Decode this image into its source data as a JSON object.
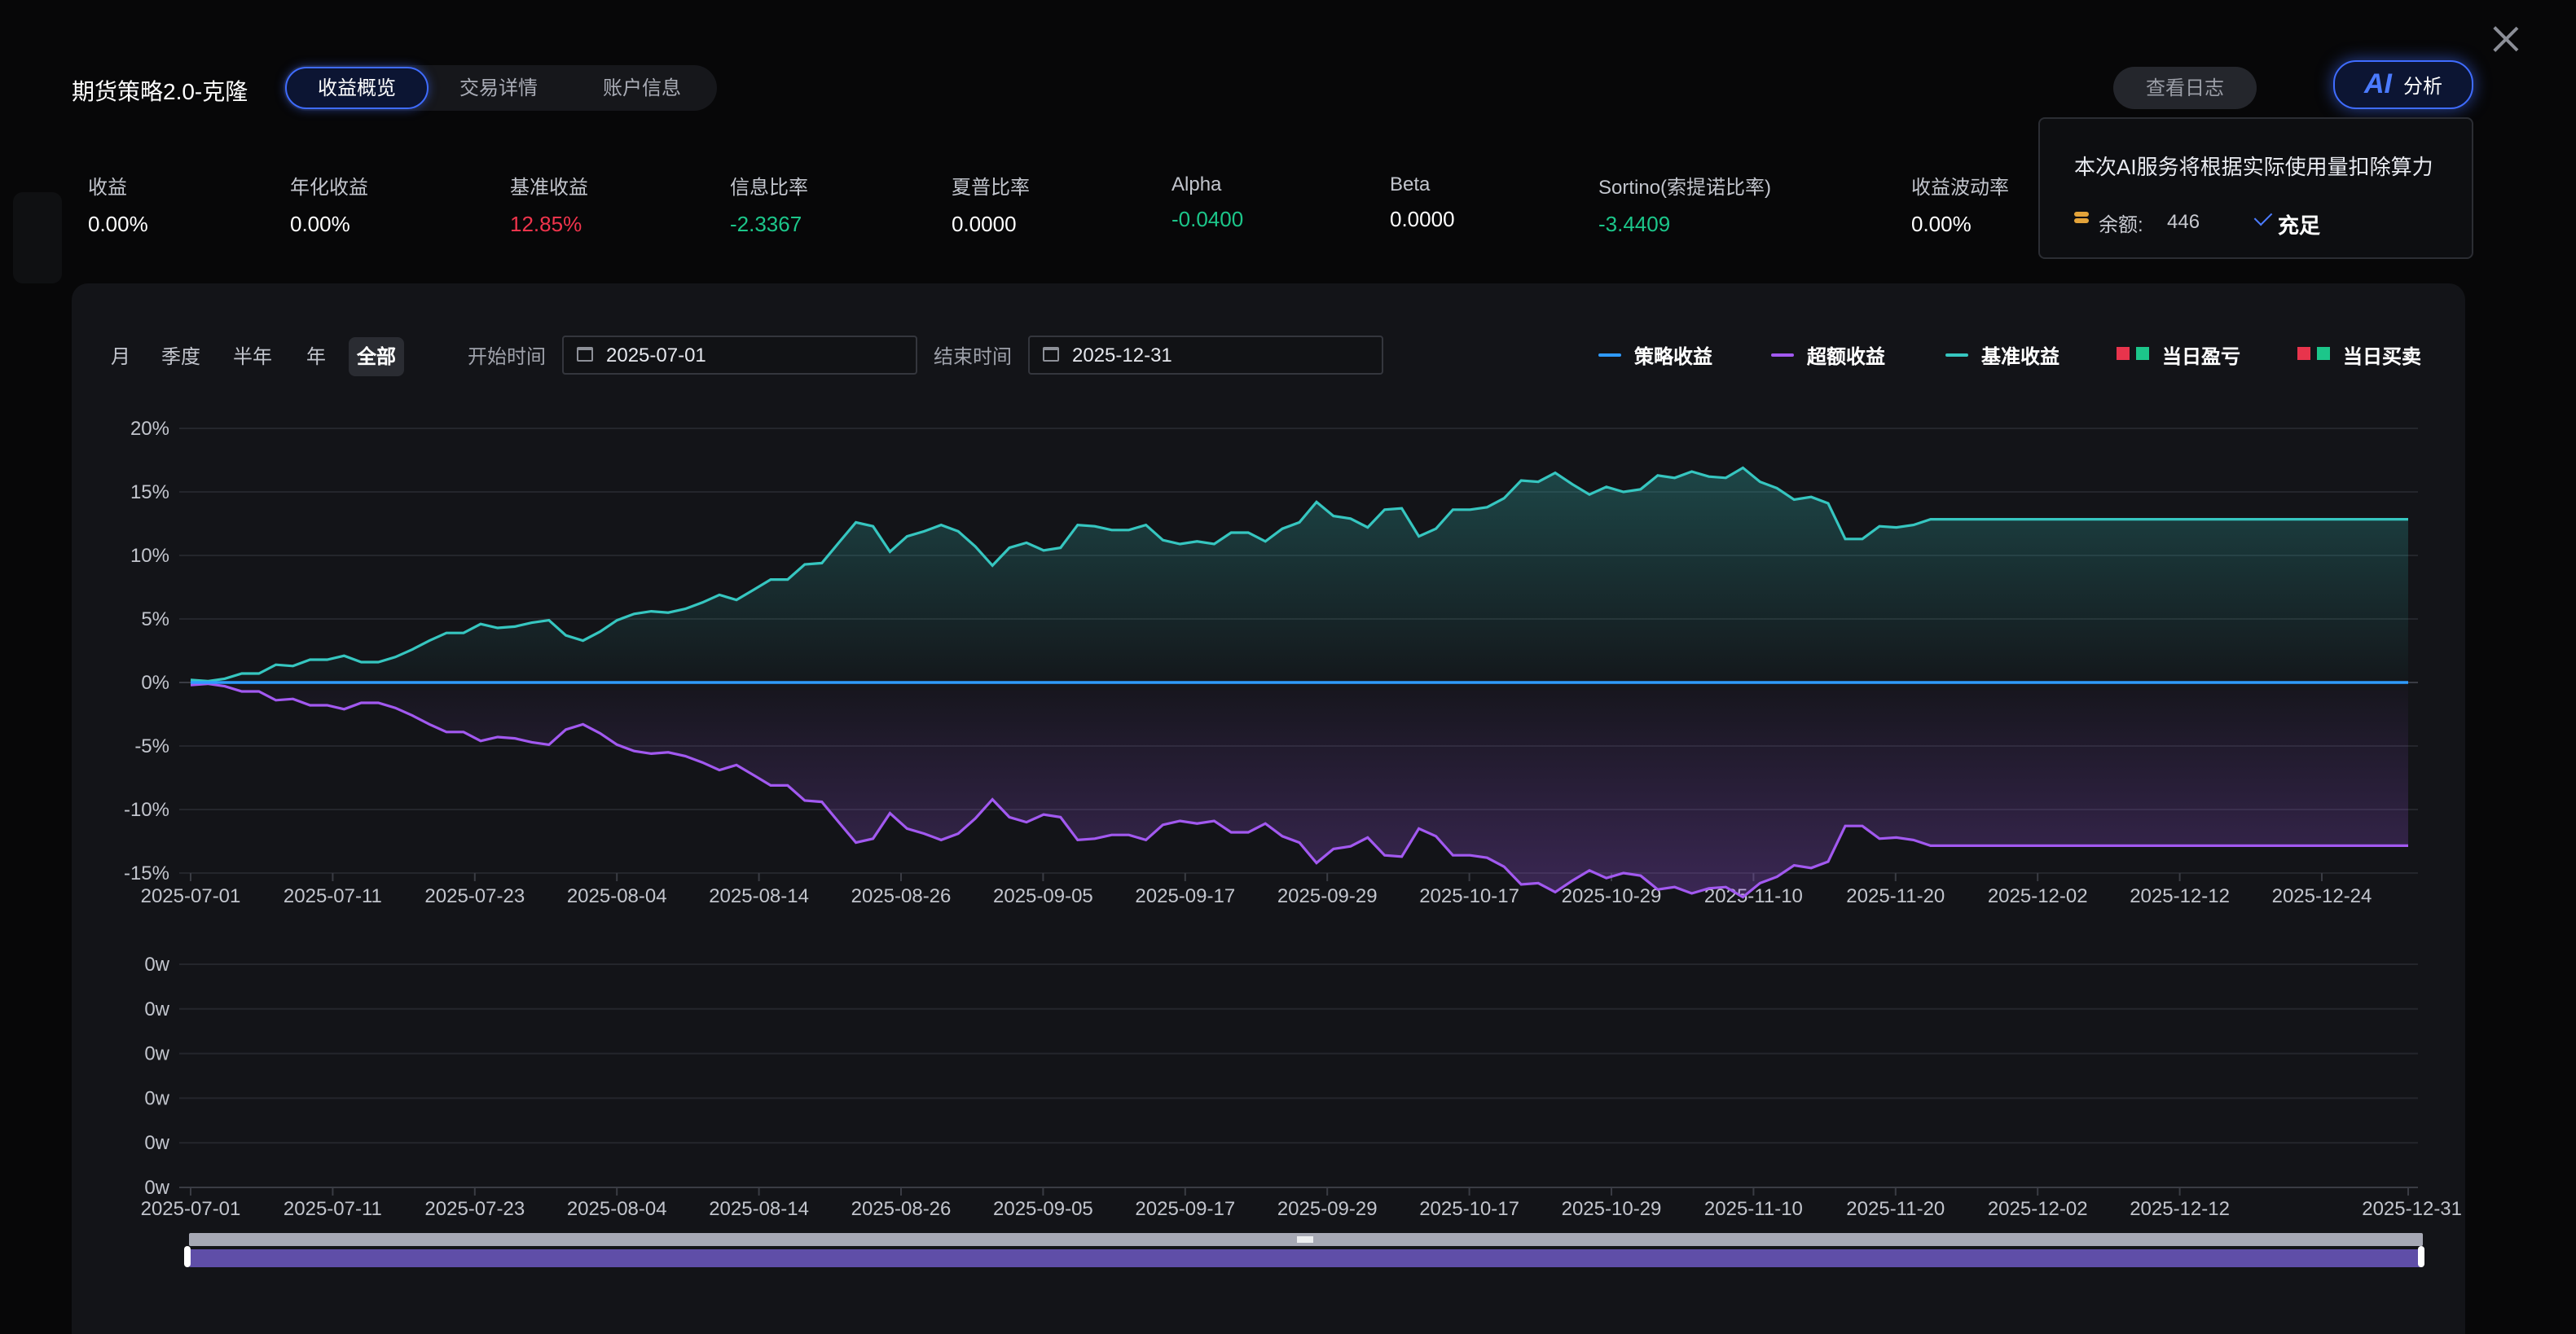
{
  "header": {
    "title": "期货策略2.0-克隆",
    "tabs": [
      {
        "label": "收益概览",
        "active": true
      },
      {
        "label": "交易详情",
        "active": false
      },
      {
        "label": "账户信息",
        "active": false
      }
    ],
    "log_button": "查看日志",
    "ai_button": {
      "mark": "AI",
      "label": "分析"
    },
    "close_icon": "close-icon"
  },
  "ai_popover": {
    "message": "本次AI服务将根据实际使用量扣除算力",
    "balance_label": "余额:",
    "balance_value": "446",
    "recharge_label": "充足",
    "coin_icon": "coin-stack-icon",
    "check_icon": "check-icon"
  },
  "metrics": [
    {
      "label": "收益",
      "value": "0.00%",
      "tone": "neutral"
    },
    {
      "label": "年化收益",
      "value": "0.00%",
      "tone": "neutral"
    },
    {
      "label": "基准收益",
      "value": "12.85%",
      "tone": "red"
    },
    {
      "label": "信息比率",
      "value": "-2.3367",
      "tone": "green"
    },
    {
      "label": "夏普比率",
      "value": "0.0000",
      "tone": "neutral"
    },
    {
      "label": "Alpha",
      "value": "-0.0400",
      "tone": "green"
    },
    {
      "label": "Beta",
      "value": "0.0000",
      "tone": "neutral"
    },
    {
      "label": "Sortino(索提诺比率)",
      "value": "-3.4409",
      "tone": "green"
    },
    {
      "label": "收益波动率",
      "value": "0.00%",
      "tone": "neutral"
    }
  ],
  "controls": {
    "periods": [
      {
        "label": "月",
        "active": false
      },
      {
        "label": "季度",
        "active": false
      },
      {
        "label": "半年",
        "active": false
      },
      {
        "label": "年",
        "active": false
      },
      {
        "label": "全部",
        "active": true
      }
    ],
    "start_label": "开始时间",
    "start_value": "2025-07-01",
    "end_label": "结束时间",
    "end_value": "2025-12-31",
    "calendar_icon": "calendar-icon"
  },
  "legend": [
    {
      "label": "策略收益",
      "kind": "line",
      "color": "#2f9bff"
    },
    {
      "label": "超额收益",
      "kind": "line",
      "color": "#a259f0"
    },
    {
      "label": "基准收益",
      "kind": "line",
      "color": "#36c6c0"
    },
    {
      "label": "当日盈亏",
      "kind": "squares",
      "colors": [
        "#e8344c",
        "#1cc68a"
      ]
    },
    {
      "label": "当日买卖",
      "kind": "squares",
      "colors": [
        "#e8344c",
        "#1cc68a"
      ]
    }
  ],
  "chart_data": [
    {
      "type": "line",
      "y_axis_unit": "%",
      "ylim": [
        -15,
        20
      ],
      "y_ticks": [
        "20%",
        "15%",
        "10%",
        "5%",
        "0%",
        "-5%",
        "-10%",
        "-15%"
      ],
      "x_tick_labels": [
        "2025-07-01",
        "2025-07-11",
        "2025-07-23",
        "2025-08-04",
        "2025-08-14",
        "2025-08-26",
        "2025-09-05",
        "2025-09-17",
        "2025-09-29",
        "2025-10-17",
        "2025-10-29",
        "2025-11-10",
        "2025-11-20",
        "2025-12-02",
        "2025-12-12",
        "2025-12-24"
      ],
      "series": [
        {
          "name": "基准收益",
          "color": "#36c6c0",
          "values": [
            0.2,
            0.1,
            0.3,
            0.7,
            0.7,
            1.4,
            1.3,
            1.8,
            1.8,
            2.1,
            1.6,
            1.6,
            2,
            2.6,
            3.3,
            3.9,
            3.9,
            4.6,
            4.3,
            4.4,
            4.7,
            4.9,
            3.7,
            3.3,
            4,
            4.9,
            5.4,
            5.6,
            5.5,
            5.8,
            6.3,
            6.9,
            6.5,
            7.3,
            8.1,
            8.1,
            9.3,
            9.4,
            11,
            12.6,
            12.3,
            10.3,
            11.5,
            11.9,
            12.4,
            11.9,
            10.7,
            9.2,
            10.6,
            11,
            10.4,
            10.6,
            12.4,
            12.3,
            12,
            12,
            12.4,
            11.2,
            10.9,
            11.1,
            10.9,
            11.8,
            11.8,
            11.1,
            12.1,
            12.6,
            14.2,
            13.1,
            12.9,
            12.2,
            13.6,
            13.7,
            11.5,
            12.1,
            13.6,
            13.6,
            13.8,
            14.5,
            15.9,
            15.8,
            16.5,
            15.6,
            14.8,
            15.4,
            15,
            15.2,
            16.3,
            16.1,
            16.6,
            16.2,
            16.1,
            16.9,
            15.8,
            15.3,
            14.4,
            14.6,
            14.1,
            11.3,
            11.3,
            12.3,
            12.2,
            12.4,
            12.85,
            12.85,
            12.85,
            12.85,
            12.85,
            12.85,
            12.85,
            12.85,
            12.85,
            12.85,
            12.85,
            12.85,
            12.85,
            12.85,
            12.85,
            12.85,
            12.85,
            12.85,
            12.85,
            12.85,
            12.85,
            12.85,
            12.85,
            12.85,
            12.85,
            12.85,
            12.85,
            12.85,
            12.85
          ]
        },
        {
          "name": "超额收益",
          "color": "#a259f0",
          "values": [
            -0.2,
            -0.1,
            -0.3,
            -0.7,
            -0.7,
            -1.4,
            -1.3,
            -1.8,
            -1.8,
            -2.1,
            -1.6,
            -1.6,
            -2,
            -2.6,
            -3.3,
            -3.9,
            -3.9,
            -4.6,
            -4.3,
            -4.4,
            -4.7,
            -4.9,
            -3.7,
            -3.3,
            -4,
            -4.9,
            -5.4,
            -5.6,
            -5.5,
            -5.8,
            -6.3,
            -6.9,
            -6.5,
            -7.3,
            -8.1,
            -8.1,
            -9.3,
            -9.4,
            -11,
            -12.6,
            -12.3,
            -10.3,
            -11.5,
            -11.9,
            -12.4,
            -11.9,
            -10.7,
            -9.2,
            -10.6,
            -11,
            -10.4,
            -10.6,
            -12.4,
            -12.3,
            -12,
            -12,
            -12.4,
            -11.2,
            -10.9,
            -11.1,
            -10.9,
            -11.8,
            -11.8,
            -11.1,
            -12.1,
            -12.6,
            -14.2,
            -13.1,
            -12.9,
            -12.2,
            -13.6,
            -13.7,
            -11.5,
            -12.1,
            -13.6,
            -13.6,
            -13.8,
            -14.5,
            -15.9,
            -15.8,
            -16.5,
            -15.6,
            -14.8,
            -15.4,
            -15,
            -15.2,
            -16.3,
            -16.1,
            -16.6,
            -16.2,
            -16.1,
            -16.9,
            -15.8,
            -15.3,
            -14.4,
            -14.6,
            -14.1,
            -11.3,
            -11.3,
            -12.3,
            -12.2,
            -12.4,
            -12.85,
            -12.85,
            -12.85,
            -12.85,
            -12.85,
            -12.85,
            -12.85,
            -12.85,
            -12.85,
            -12.85,
            -12.85,
            -12.85,
            -12.85,
            -12.85,
            -12.85,
            -12.85,
            -12.85,
            -12.85,
            -12.85,
            -12.85,
            -12.85,
            -12.85,
            -12.85,
            -12.85,
            -12.85,
            -12.85,
            -12.85,
            -12.85,
            -12.85
          ]
        },
        {
          "name": "策略收益",
          "color": "#2f9bff",
          "values": "flat 0 across the full range"
        }
      ]
    },
    {
      "type": "bar",
      "y_ticks": [
        "0w",
        "0w",
        "0w",
        "0w",
        "0w",
        "0w"
      ],
      "x_tick_labels": [
        "2025-07-01",
        "2025-07-11",
        "2025-07-23",
        "2025-08-04",
        "2025-08-14",
        "2025-08-26",
        "2025-09-05",
        "2025-09-17",
        "2025-09-29",
        "2025-10-17",
        "2025-10-29",
        "2025-11-10",
        "2025-11-20",
        "2025-12-02",
        "2025-12-12",
        "2025-12-31"
      ],
      "series": []
    }
  ],
  "zoom_slider": {
    "start": 0,
    "end": 1,
    "handle_icon": "drag-grip-icon"
  }
}
